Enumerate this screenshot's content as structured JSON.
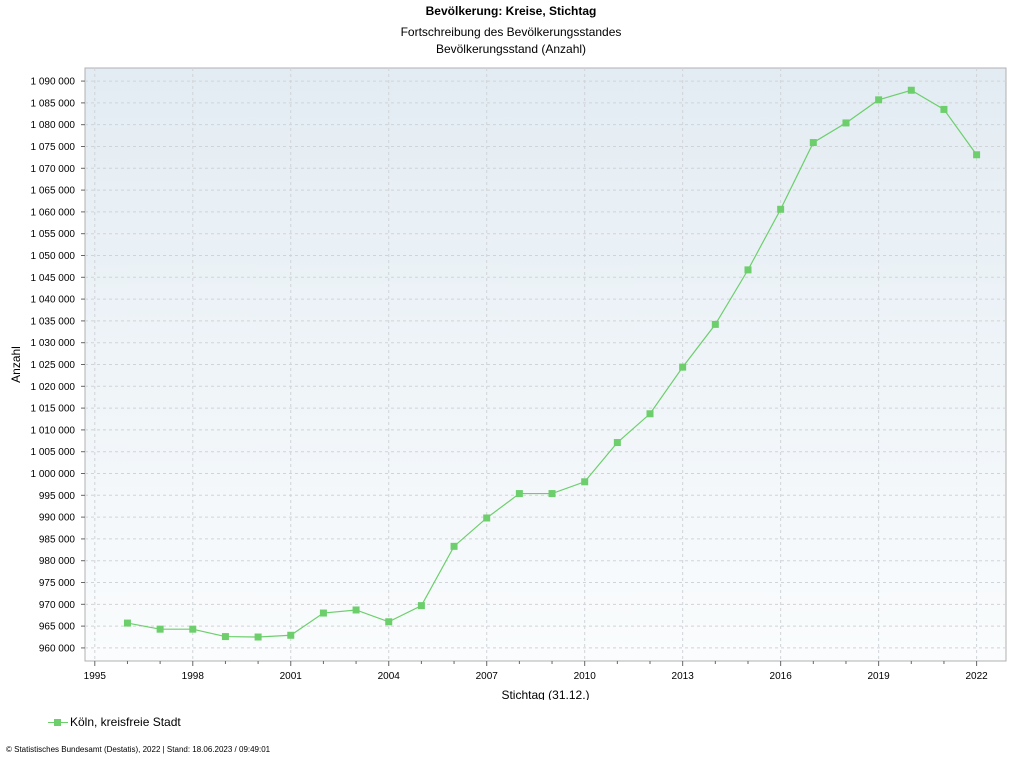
{
  "header": {
    "title": "Bevölkerung: Kreise, Stichtag",
    "subtitle1": "Fortschreibung des Bevölkerungsstandes",
    "subtitle2": "Bevölkerungsstand (Anzahl)"
  },
  "legend": {
    "label": "Köln, kreisfreie Stadt"
  },
  "footer": {
    "text": "© Statistisches Bundesamt (Destatis), 2022 | Stand: 18.06.2023 / 09:49:01"
  },
  "colors": {
    "series": "#6ccf6c",
    "grid": "#d0d4d8",
    "plot_top": "#e3ecf3",
    "plot_bottom": "#fafcfd"
  },
  "chart_data": {
    "type": "line",
    "xlabel": "Stichtag (31.12.)",
    "ylabel": "Anzahl",
    "xlim": [
      1994.7,
      2022.9
    ],
    "ylim": [
      957000,
      1093000
    ],
    "x_ticks": [
      1995,
      1998,
      2001,
      2004,
      2007,
      2010,
      2013,
      2016,
      2019,
      2022
    ],
    "y_ticks": [
      960000,
      965000,
      970000,
      975000,
      980000,
      985000,
      990000,
      995000,
      1000000,
      1005000,
      1010000,
      1015000,
      1020000,
      1025000,
      1030000,
      1035000,
      1040000,
      1045000,
      1050000,
      1055000,
      1060000,
      1065000,
      1070000,
      1075000,
      1080000,
      1085000,
      1090000
    ],
    "x_tick_labels": [
      "1995",
      "1998",
      "2001",
      "2004",
      "2007",
      "2010",
      "2013",
      "2016",
      "2019",
      "2022"
    ],
    "y_tick_labels": [
      "960 000",
      "965 000",
      "970 000",
      "975 000",
      "980 000",
      "985 000",
      "990 000",
      "995 000",
      "1 000 000",
      "1 005 000",
      "1 010 000",
      "1 015 000",
      "1 020 000",
      "1 025 000",
      "1 030 000",
      "1 035 000",
      "1 040 000",
      "1 045 000",
      "1 050 000",
      "1 055 000",
      "1 060 000",
      "1 065 000",
      "1 070 000",
      "1 075 000",
      "1 080 000",
      "1 085 000",
      "1 090 000"
    ],
    "grid": true,
    "legend_position": "bottom-left",
    "series": [
      {
        "name": "Köln, kreisfreie Stadt",
        "x": [
          1996,
          1997,
          1998,
          1999,
          2000,
          2001,
          2002,
          2003,
          2004,
          2005,
          2006,
          2007,
          2008,
          2009,
          2010,
          2011,
          2012,
          2013,
          2014,
          2015,
          2016,
          2017,
          2018,
          2019,
          2020,
          2021,
          2022
        ],
        "y": [
          965700,
          964300,
          964300,
          962600,
          962500,
          962900,
          968000,
          968700,
          966000,
          969700,
          983300,
          989800,
          995400,
          995400,
          998100,
          1007100,
          1013700,
          1024400,
          1034200,
          1046700,
          1060600,
          1075900,
          1080400,
          1085700,
          1087900,
          1083500,
          1073100
        ]
      }
    ]
  }
}
